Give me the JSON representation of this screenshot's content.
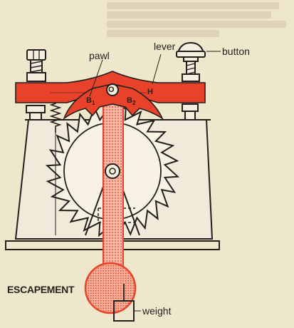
{
  "labels": {
    "lever": "lever",
    "pawl": "pawl",
    "button": "button",
    "escapement": "ESCAPEMENT",
    "weight": "weight"
  },
  "markers": {
    "b1": "B",
    "b1_sub": "1",
    "o": "O",
    "b2": "B",
    "b2_sub": "2",
    "h": "H"
  },
  "colors": {
    "background": "#efe7cc",
    "accent": "#e8432a",
    "accent_light": "#f3a690",
    "ink": "#231f1c"
  }
}
